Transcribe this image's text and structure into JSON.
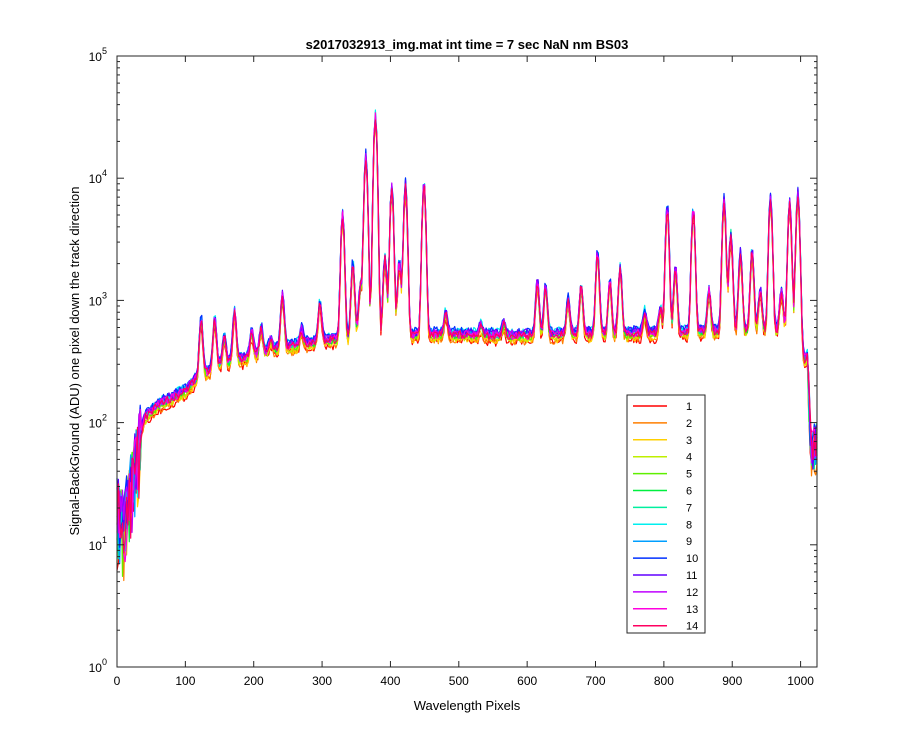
{
  "chart_data": {
    "type": "line",
    "title": "s2017032913_img.mat int time = 7 sec  NaN nm BS03",
    "xlabel": "Wavelength Pixels",
    "ylabel": "Signal-BackGround (ADU) one pixel down the track direction",
    "xlim": [
      0,
      1024
    ],
    "ylim": [
      1,
      100000
    ],
    "yscale": "log",
    "grid": false,
    "legend_position": "lower-right",
    "x_ticks": [
      0,
      100,
      200,
      300,
      400,
      500,
      600,
      700,
      800,
      900,
      1000
    ],
    "y_ticks": [
      {
        "value": 1,
        "base": "10",
        "exp": "0"
      },
      {
        "value": 10,
        "base": "10",
        "exp": "1"
      },
      {
        "value": 100,
        "base": "10",
        "exp": "2"
      },
      {
        "value": 1000,
        "base": "10",
        "exp": "3"
      },
      {
        "value": 10000,
        "base": "10",
        "exp": "4"
      },
      {
        "value": 100000,
        "base": "10",
        "exp": "5"
      }
    ],
    "baseline_x": [
      0,
      10,
      20,
      30,
      40,
      60,
      80,
      100,
      120,
      150,
      180,
      200,
      250,
      300,
      350,
      400,
      450,
      500,
      550,
      600,
      650,
      700,
      750,
      800,
      850,
      900,
      950,
      1000,
      1005,
      1010,
      1015,
      1024
    ],
    "baseline_y": [
      20,
      15,
      30,
      60,
      110,
      140,
      160,
      185,
      240,
      300,
      330,
      360,
      420,
      470,
      500,
      520,
      530,
      530,
      520,
      520,
      530,
      540,
      540,
      550,
      560,
      570,
      580,
      580,
      330,
      350,
      60,
      70
    ],
    "peaks": [
      {
        "x": 123,
        "y": 700
      },
      {
        "x": 143,
        "y": 700
      },
      {
        "x": 157,
        "y": 500
      },
      {
        "x": 172,
        "y": 800
      },
      {
        "x": 197,
        "y": 550
      },
      {
        "x": 211,
        "y": 600
      },
      {
        "x": 225,
        "y": 480
      },
      {
        "x": 242,
        "y": 1100
      },
      {
        "x": 270,
        "y": 580
      },
      {
        "x": 297,
        "y": 950
      },
      {
        "x": 330,
        "y": 5000
      },
      {
        "x": 345,
        "y": 2000
      },
      {
        "x": 356,
        "y": 1300
      },
      {
        "x": 364,
        "y": 15000
      },
      {
        "x": 378,
        "y": 32000
      },
      {
        "x": 392,
        "y": 2200
      },
      {
        "x": 402,
        "y": 8500
      },
      {
        "x": 413,
        "y": 2000
      },
      {
        "x": 422,
        "y": 8800
      },
      {
        "x": 449,
        "y": 9000
      },
      {
        "x": 481,
        "y": 800
      },
      {
        "x": 532,
        "y": 620
      },
      {
        "x": 566,
        "y": 650
      },
      {
        "x": 615,
        "y": 1400
      },
      {
        "x": 627,
        "y": 1300
      },
      {
        "x": 660,
        "y": 1000
      },
      {
        "x": 679,
        "y": 1300
      },
      {
        "x": 703,
        "y": 2400
      },
      {
        "x": 721,
        "y": 1400
      },
      {
        "x": 736,
        "y": 1800
      },
      {
        "x": 772,
        "y": 800
      },
      {
        "x": 795,
        "y": 850
      },
      {
        "x": 805,
        "y": 5700
      },
      {
        "x": 817,
        "y": 1800
      },
      {
        "x": 843,
        "y": 5400
      },
      {
        "x": 866,
        "y": 1200
      },
      {
        "x": 888,
        "y": 6500
      },
      {
        "x": 898,
        "y": 3500
      },
      {
        "x": 912,
        "y": 2400
      },
      {
        "x": 929,
        "y": 2500
      },
      {
        "x": 941,
        "y": 1200
      },
      {
        "x": 956,
        "y": 6800
      },
      {
        "x": 972,
        "y": 1200
      },
      {
        "x": 984,
        "y": 6200
      },
      {
        "x": 996,
        "y": 7500
      }
    ],
    "series": [
      {
        "name": "1",
        "color": "#ff0000",
        "scale": 0.88
      },
      {
        "name": "2",
        "color": "#ff7f00",
        "scale": 0.9
      },
      {
        "name": "3",
        "color": "#ffd000",
        "scale": 0.92
      },
      {
        "name": "4",
        "color": "#bfef00",
        "scale": 0.95
      },
      {
        "name": "5",
        "color": "#5fef00",
        "scale": 0.98
      },
      {
        "name": "6",
        "color": "#00ef3f",
        "scale": 1.0
      },
      {
        "name": "7",
        "color": "#00ef9f",
        "scale": 1.02
      },
      {
        "name": "8",
        "color": "#00efef",
        "scale": 1.06
      },
      {
        "name": "9",
        "color": "#009fff",
        "scale": 1.05
      },
      {
        "name": "10",
        "color": "#0030ff",
        "scale": 1.07
      },
      {
        "name": "11",
        "color": "#6000ff",
        "scale": 1.04
      },
      {
        "name": "12",
        "color": "#bf00ff",
        "scale": 1.02
      },
      {
        "name": "13",
        "color": "#ff00df",
        "scale": 1.0
      },
      {
        "name": "14",
        "color": "#ff0060",
        "scale": 0.99
      }
    ]
  }
}
